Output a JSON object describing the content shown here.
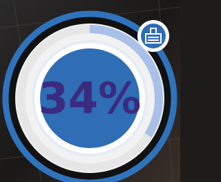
{
  "chart_data": {
    "type": "progress",
    "values": [
      34
    ],
    "value_labels": [
      "34%"
    ],
    "ylim": [
      0,
      100
    ],
    "color": "#a9c1e8",
    "text_color": "#3a2a80"
  }
}
